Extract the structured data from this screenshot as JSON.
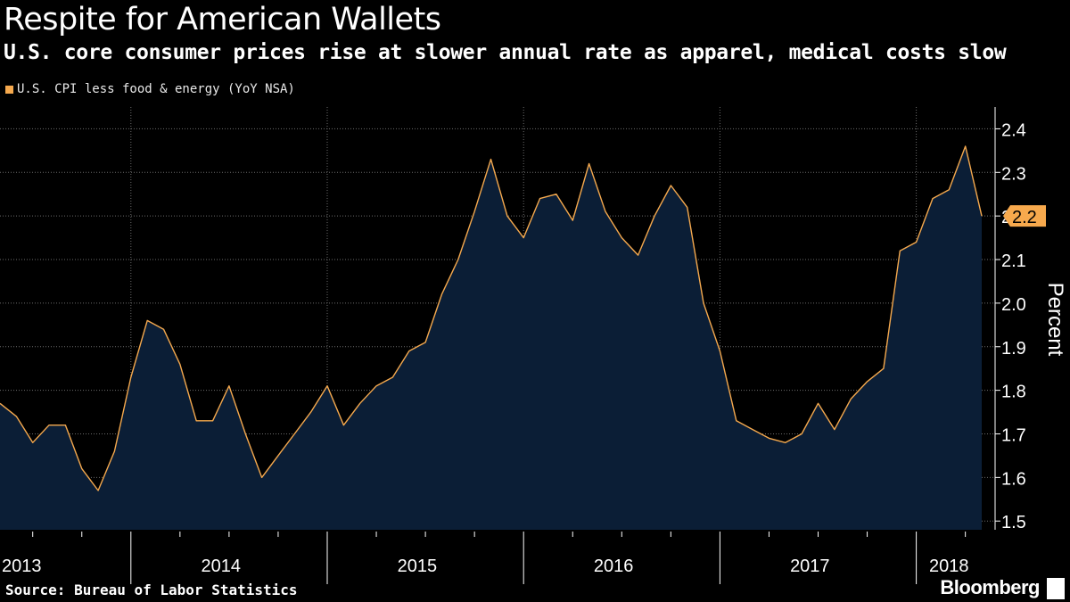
{
  "header": {
    "title": "Respite for American Wallets",
    "subtitle": "U.S. core consumer prices rise at slower annual rate as apparel, medical costs slow"
  },
  "footer": {
    "source": "Source: Bureau of Labor Statistics",
    "brand": "Bloomberg"
  },
  "colors": {
    "background": "#000000",
    "line": "#f5a94e",
    "area": "#0b1e36",
    "grid": "#6b6b6b",
    "text": "#ffffff",
    "label_bg": "#f7a94d"
  },
  "icons": [
    "bloomberg-logo-icon"
  ],
  "chart_data": {
    "type": "area",
    "series": [
      {
        "name": "U.S. CPI less food & energy (YoY NSA)",
        "values": [
          1.77,
          1.74,
          1.68,
          1.72,
          1.72,
          1.62,
          1.57,
          1.66,
          1.83,
          1.96,
          1.94,
          1.86,
          1.73,
          1.73,
          1.81,
          1.7,
          1.6,
          1.65,
          1.7,
          1.75,
          1.81,
          1.72,
          1.77,
          1.81,
          1.83,
          1.89,
          1.91,
          2.02,
          2.1,
          2.21,
          2.33,
          2.2,
          2.15,
          2.24,
          2.25,
          2.19,
          2.32,
          2.21,
          2.15,
          2.11,
          2.2,
          2.27,
          2.22,
          2.0,
          1.89,
          1.73,
          1.71,
          1.69,
          1.68,
          1.7,
          1.77,
          1.71,
          1.78,
          1.82,
          1.85,
          2.12,
          2.14,
          2.24,
          2.26,
          2.36,
          2.2
        ]
      }
    ],
    "x_start": "2013-05",
    "x_end": "2018-05",
    "x_tick_labels": [
      "2013",
      "2014",
      "2015",
      "2016",
      "2017",
      "2018"
    ],
    "y_ticks": [
      1.5,
      1.6,
      1.7,
      1.8,
      1.9,
      2.0,
      2.1,
      2.2,
      2.3,
      2.4
    ],
    "ylim": [
      1.48,
      2.45
    ],
    "ylabel": "Percent",
    "last_value_label": "2.2",
    "grid": true,
    "legend_position": "top-left"
  }
}
